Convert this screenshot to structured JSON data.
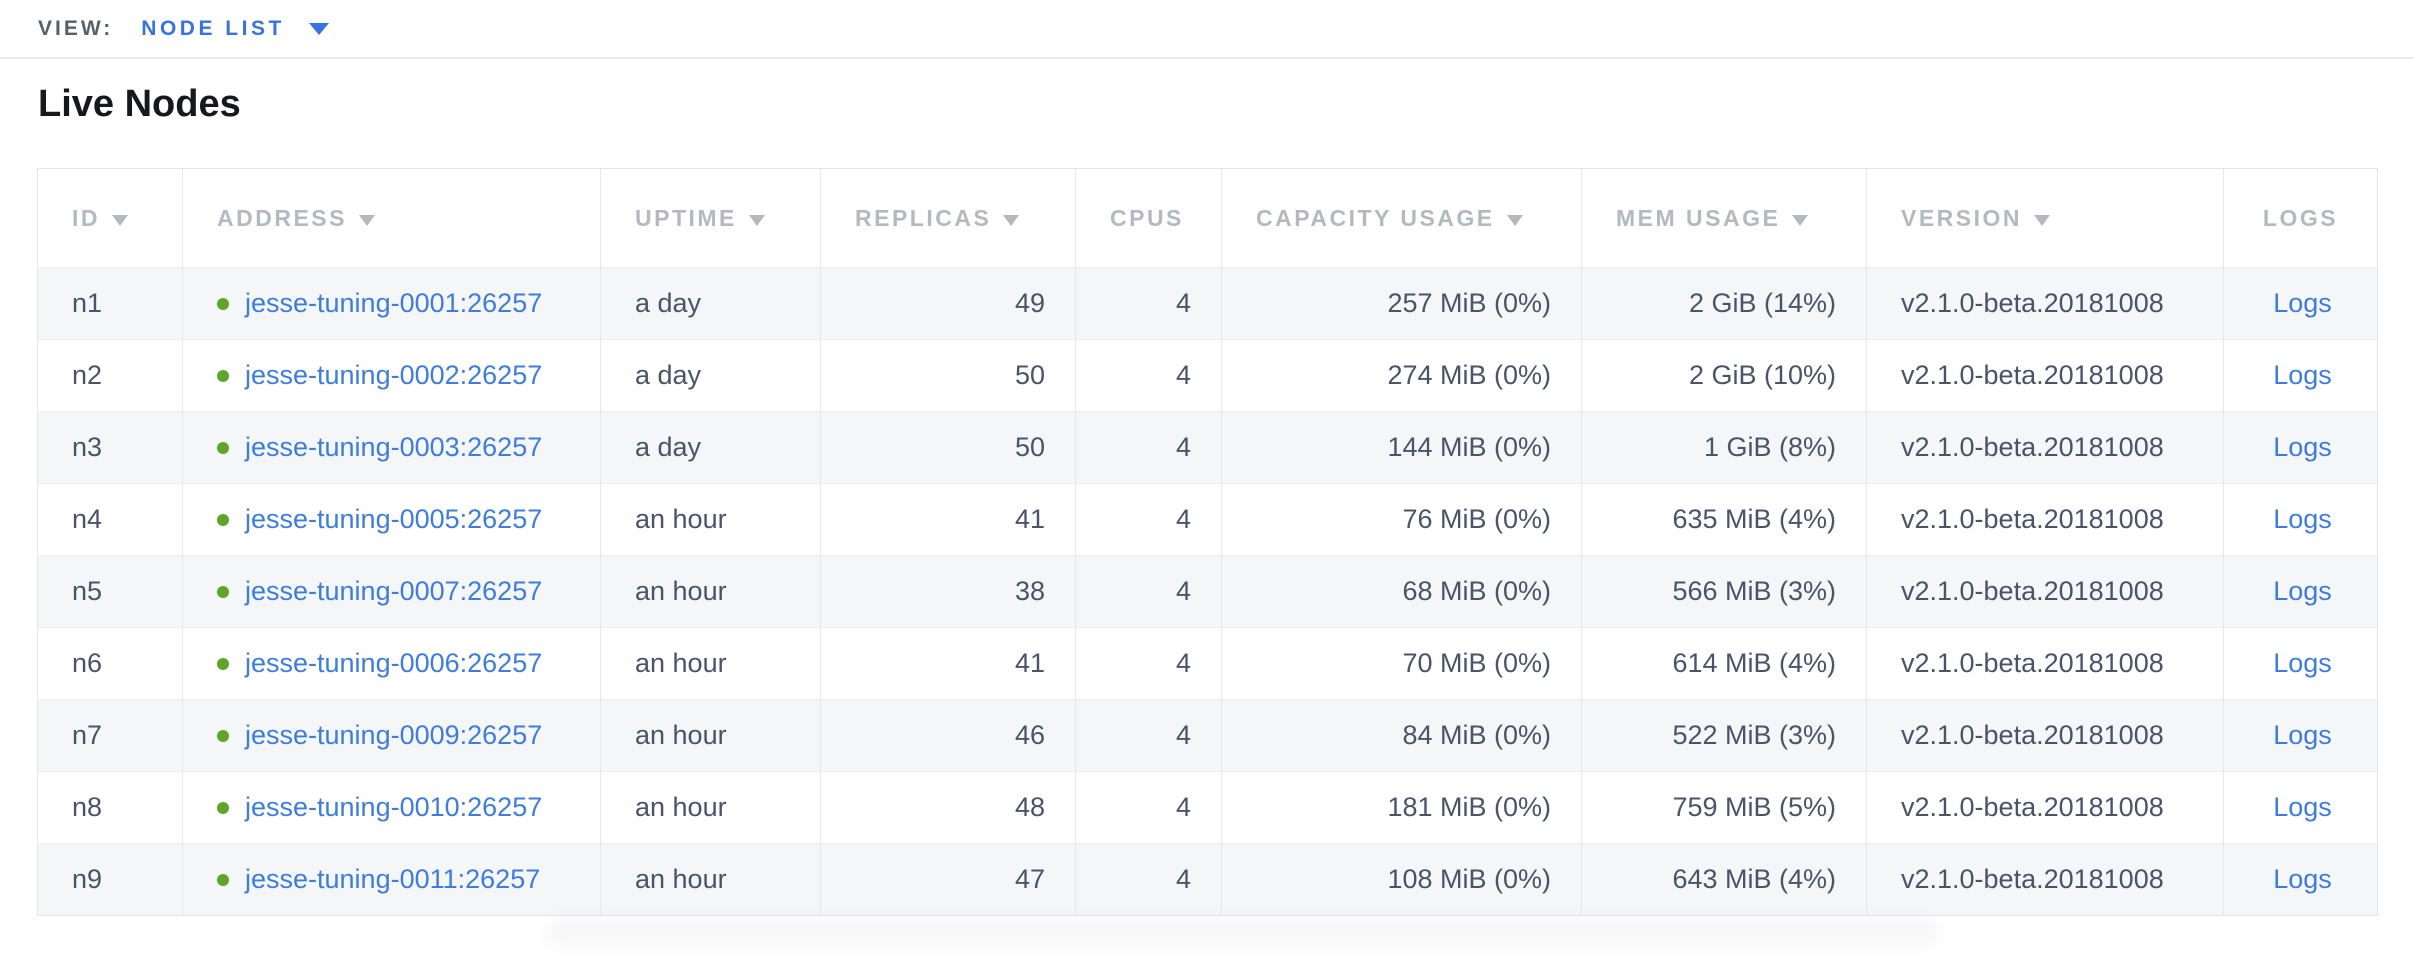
{
  "view_bar": {
    "label": "VIEW:",
    "selected": "NODE LIST"
  },
  "page": {
    "title": "Live Nodes"
  },
  "colors": {
    "link_blue": "#3e7cdd",
    "selector_blue": "#3873e0",
    "live_green": "#5ba62b",
    "header_gray": "#b4b9c0",
    "cell_text": "#4a5468"
  },
  "table": {
    "columns": [
      {
        "key": "id",
        "label": "ID",
        "sortable": true,
        "align": "left"
      },
      {
        "key": "address",
        "label": "ADDRESS",
        "sortable": true,
        "align": "left"
      },
      {
        "key": "uptime",
        "label": "UPTIME",
        "sortable": true,
        "align": "left"
      },
      {
        "key": "replicas",
        "label": "REPLICAS",
        "sortable": true,
        "align": "right"
      },
      {
        "key": "cpus",
        "label": "CPUS",
        "sortable": false,
        "align": "right"
      },
      {
        "key": "capacity",
        "label": "CAPACITY USAGE",
        "sortable": true,
        "align": "right"
      },
      {
        "key": "mem",
        "label": "MEM USAGE",
        "sortable": true,
        "align": "right"
      },
      {
        "key": "version",
        "label": "VERSION",
        "sortable": true,
        "align": "left"
      },
      {
        "key": "logs",
        "label": "LOGS",
        "sortable": false,
        "align": "center"
      }
    ],
    "rows": [
      {
        "id": "n1",
        "address": "jesse-tuning-0001:26257",
        "status": "live",
        "uptime": "a day",
        "replicas": "49",
        "cpus": "4",
        "capacity": "257 MiB (0%)",
        "mem": "2 GiB (14%)",
        "version": "v2.1.0-beta.20181008",
        "logs": "Logs"
      },
      {
        "id": "n2",
        "address": "jesse-tuning-0002:26257",
        "status": "live",
        "uptime": "a day",
        "replicas": "50",
        "cpus": "4",
        "capacity": "274 MiB (0%)",
        "mem": "2 GiB (10%)",
        "version": "v2.1.0-beta.20181008",
        "logs": "Logs"
      },
      {
        "id": "n3",
        "address": "jesse-tuning-0003:26257",
        "status": "live",
        "uptime": "a day",
        "replicas": "50",
        "cpus": "4",
        "capacity": "144 MiB (0%)",
        "mem": "1 GiB (8%)",
        "version": "v2.1.0-beta.20181008",
        "logs": "Logs"
      },
      {
        "id": "n4",
        "address": "jesse-tuning-0005:26257",
        "status": "live",
        "uptime": "an hour",
        "replicas": "41",
        "cpus": "4",
        "capacity": "76 MiB (0%)",
        "mem": "635 MiB (4%)",
        "version": "v2.1.0-beta.20181008",
        "logs": "Logs"
      },
      {
        "id": "n5",
        "address": "jesse-tuning-0007:26257",
        "status": "live",
        "uptime": "an hour",
        "replicas": "38",
        "cpus": "4",
        "capacity": "68 MiB (0%)",
        "mem": "566 MiB (3%)",
        "version": "v2.1.0-beta.20181008",
        "logs": "Logs"
      },
      {
        "id": "n6",
        "address": "jesse-tuning-0006:26257",
        "status": "live",
        "uptime": "an hour",
        "replicas": "41",
        "cpus": "4",
        "capacity": "70 MiB (0%)",
        "mem": "614 MiB (4%)",
        "version": "v2.1.0-beta.20181008",
        "logs": "Logs"
      },
      {
        "id": "n7",
        "address": "jesse-tuning-0009:26257",
        "status": "live",
        "uptime": "an hour",
        "replicas": "46",
        "cpus": "4",
        "capacity": "84 MiB (0%)",
        "mem": "522 MiB (3%)",
        "version": "v2.1.0-beta.20181008",
        "logs": "Logs"
      },
      {
        "id": "n8",
        "address": "jesse-tuning-0010:26257",
        "status": "live",
        "uptime": "an hour",
        "replicas": "48",
        "cpus": "4",
        "capacity": "181 MiB (0%)",
        "mem": "759 MiB (5%)",
        "version": "v2.1.0-beta.20181008",
        "logs": "Logs"
      },
      {
        "id": "n9",
        "address": "jesse-tuning-0011:26257",
        "status": "live",
        "uptime": "an hour",
        "replicas": "47",
        "cpus": "4",
        "capacity": "108 MiB (0%)",
        "mem": "643 MiB (4%)",
        "version": "v2.1.0-beta.20181008",
        "logs": "Logs"
      }
    ]
  }
}
